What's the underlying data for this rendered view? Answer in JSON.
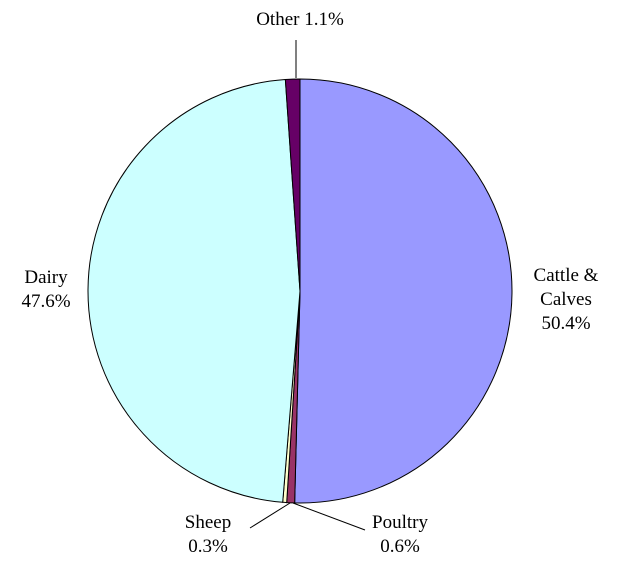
{
  "chart_data": {
    "type": "pie",
    "categories": [
      "Cattle & Calves",
      "Poultry",
      "Sheep",
      "Dairy",
      "Other"
    ],
    "values": [
      50.4,
      0.6,
      0.3,
      47.6,
      1.1
    ],
    "value_labels": [
      "50.4%",
      "0.6%",
      "0.3%",
      "47.6%",
      "1.1%"
    ],
    "colors": [
      "#9999ff",
      "#993366",
      "#ffffcc",
      "#ccffff",
      "#660066"
    ]
  }
}
